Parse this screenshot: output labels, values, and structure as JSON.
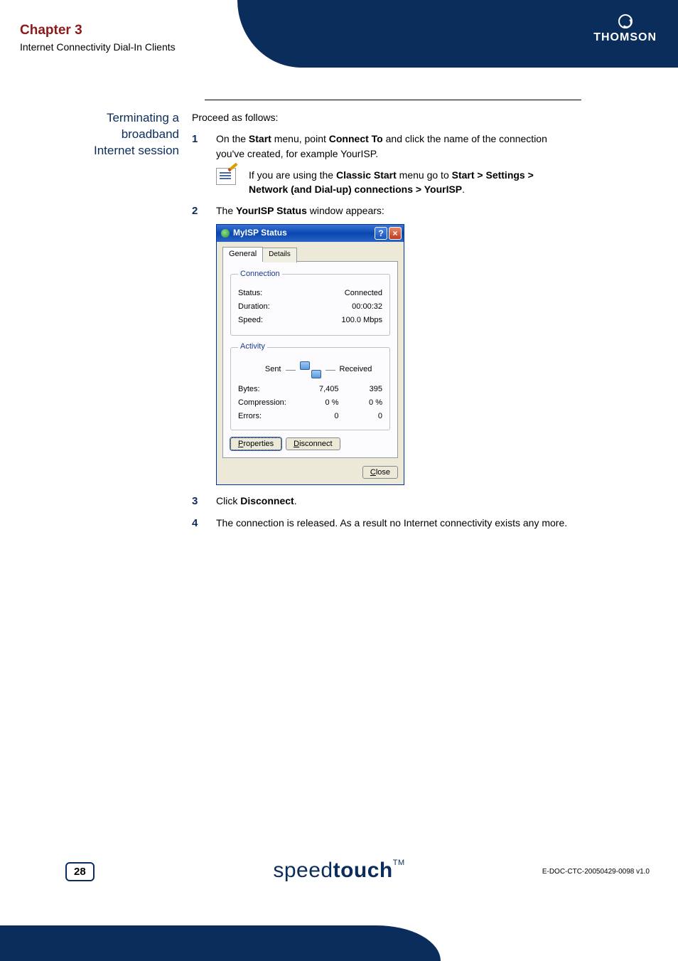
{
  "header": {
    "chapter": "Chapter 3",
    "subtitle": "Internet Connectivity Dial-In Clients",
    "logo": "THOMSON"
  },
  "section": {
    "margin_title": "Terminating a broadband Internet session",
    "intro": "Proceed as follows:",
    "step1_pre": "On the ",
    "step1_b1": "Start",
    "step1_mid1": " menu, point ",
    "step1_b2": "Connect To",
    "step1_post": " and click the name of the connection you've created, for example YourISP.",
    "note_pre": "If you are using the ",
    "note_b1": "Classic Start",
    "note_mid": " menu go to ",
    "note_b2": "Start > Settings > Network (and Dial-up) connections > YourISP",
    "note_end": ".",
    "step2_pre": "The ",
    "step2_b": "YourISP Status",
    "step2_post": " window appears:",
    "step3_pre": "Click ",
    "step3_b": "Disconnect",
    "step3_end": ".",
    "step4": "The connection is released. As a result no Internet connectivity exists any more."
  },
  "dialog": {
    "title": "MyISP Status",
    "tab_general": "General",
    "tab_details": "Details",
    "grp_connection": "Connection",
    "status_label": "Status:",
    "status_value": "Connected",
    "duration_label": "Duration:",
    "duration_value": "00:00:32",
    "speed_label": "Speed:",
    "speed_value": "100.0 Mbps",
    "grp_activity": "Activity",
    "sent": "Sent",
    "received": "Received",
    "bytes_label": "Bytes:",
    "bytes_sent": "7,405",
    "bytes_recv": "395",
    "comp_label": "Compression:",
    "comp_sent": "0 %",
    "comp_recv": "0 %",
    "err_label": "Errors:",
    "err_sent": "0",
    "err_recv": "0",
    "btn_properties_u": "P",
    "btn_properties": "roperties",
    "btn_disconnect_u": "D",
    "btn_disconnect": "isconnect",
    "btn_close_u": "C",
    "btn_close": "lose"
  },
  "footer": {
    "page": "28",
    "brand_light": "speed",
    "brand_bold": "touch",
    "tm": "TM",
    "docid": "E-DOC-CTC-20050429-0098 v1.0"
  }
}
